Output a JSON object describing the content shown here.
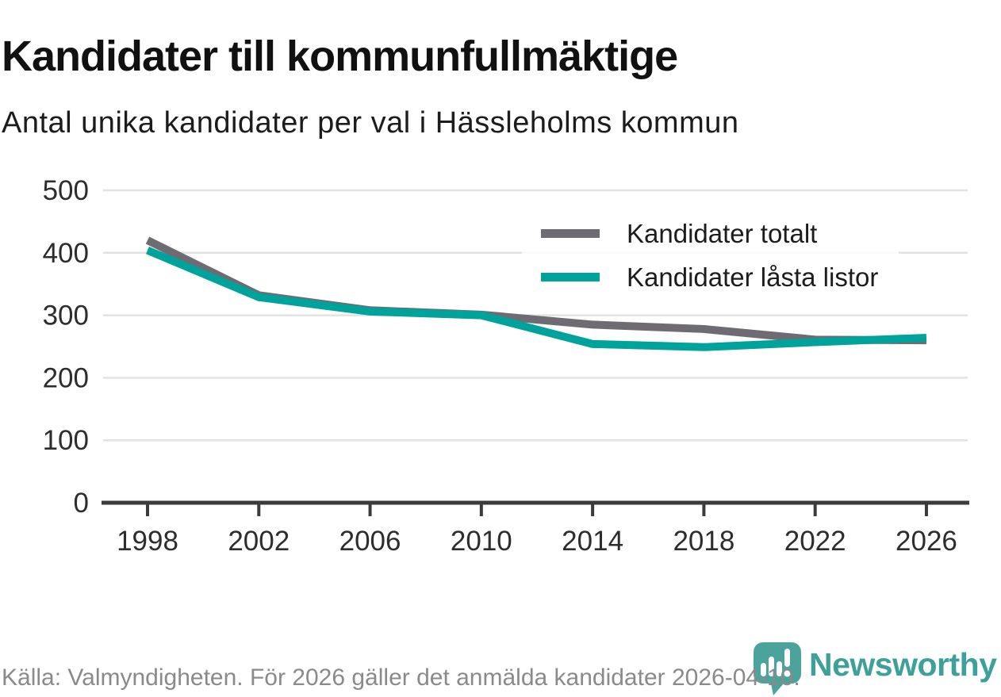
{
  "header": {
    "title": "Kandidater till kommunfullmäktige",
    "subtitle": "Antal unika kandidater per val i Hässleholms kommun"
  },
  "chart_data": {
    "type": "line",
    "x": [
      1998,
      2002,
      2006,
      2010,
      2014,
      2018,
      2022,
      2026
    ],
    "series": [
      {
        "name": "Kandidater totalt",
        "color": "#6f6b72",
        "values": [
          420,
          332,
          308,
          301,
          285,
          278,
          261,
          260
        ]
      },
      {
        "name": "Kandidater låsta listor",
        "color": "#00a39c",
        "values": [
          404,
          329,
          306,
          300,
          254,
          249,
          257,
          264
        ]
      }
    ],
    "ylim": [
      0,
      500
    ],
    "y_ticks": [
      0,
      100,
      200,
      300,
      400,
      500
    ],
    "grid": "horizontal",
    "legend_position": "top-right",
    "title": "Kandidater till kommunfullmäktige",
    "xlabel": "",
    "ylabel": ""
  },
  "footer": {
    "source": "Källa: Valmyndigheten. För 2026 gäller det anmälda kandidater 2026-04-10.",
    "brand": "Newsworthy"
  },
  "colors": {
    "series_gray": "#6f6b72",
    "accent_teal": "#00a39c",
    "brand_teal": "#3da099",
    "logo_bubble": "#4ba39c",
    "gridline": "#e2e2e2",
    "axis": "#3b3b3b",
    "tick_label": "#2d2d2d",
    "footer_text": "#8a8a8a"
  }
}
